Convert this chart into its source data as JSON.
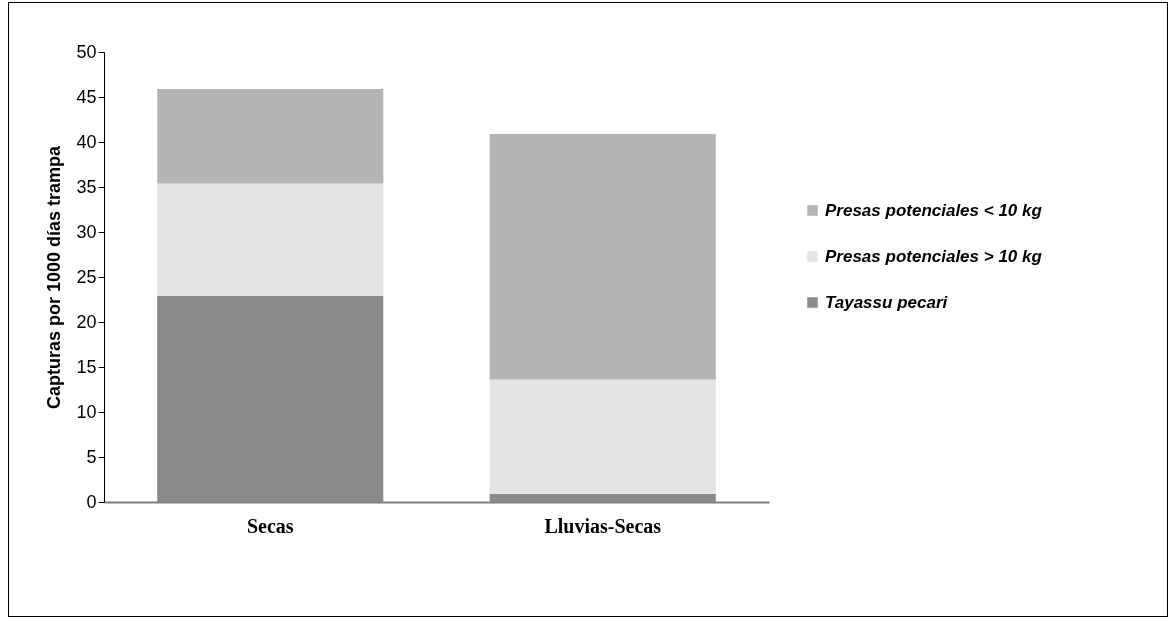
{
  "chart_data": {
    "type": "bar",
    "stacked": true,
    "ylabel": "Capturas por 1000 días trampa",
    "categories": [
      "Secas",
      "Lluvias-Secas"
    ],
    "series": [
      {
        "name": "Tayassu pecari",
        "color": "#8a8a8a",
        "values": [
          22.9,
          0.9
        ]
      },
      {
        "name": "Presas potenciales  > 10 kg",
        "color": "#e4e4e4",
        "values": [
          12.5,
          12.7
        ]
      },
      {
        "name": "Presas potenciales  < 10 kg",
        "color": "#b4b4b4",
        "values": [
          10.5,
          27.3
        ]
      }
    ],
    "ylim": [
      0,
      50
    ],
    "yticks": [
      0,
      5,
      10,
      15,
      20,
      25,
      30,
      35,
      40,
      45,
      50
    ],
    "grid": false,
    "legend": "right"
  }
}
